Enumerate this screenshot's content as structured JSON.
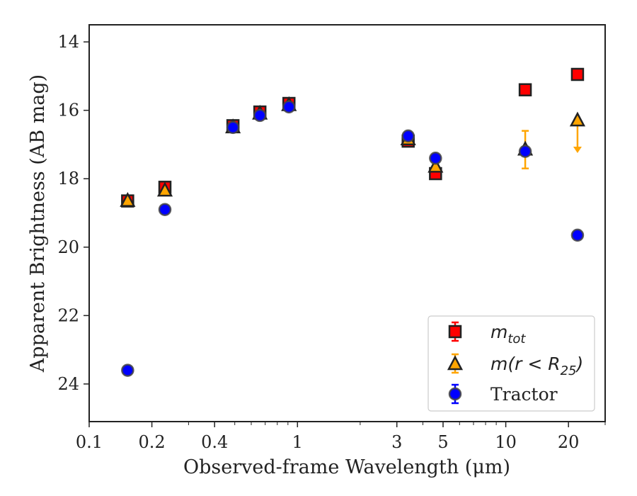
{
  "chart_data": {
    "type": "scatter",
    "title": "",
    "xlabel": "Observed-frame Wavelength (μm)",
    "ylabel": "Apparent Brightness (AB mag)",
    "xscale": "log",
    "xlim": [
      0.1,
      30
    ],
    "ylim": [
      25.1,
      13.5
    ],
    "y_inverted": true,
    "x_ticks": [
      {
        "value": 0.1,
        "label": "0.1"
      },
      {
        "value": 0.2,
        "label": "0.2"
      },
      {
        "value": 0.4,
        "label": "0.4"
      },
      {
        "value": 1,
        "label": "1"
      },
      {
        "value": 3,
        "label": "3"
      },
      {
        "value": 5,
        "label": "5"
      },
      {
        "value": 10,
        "label": "10"
      },
      {
        "value": 20,
        "label": "20"
      }
    ],
    "y_ticks": [
      {
        "value": 14,
        "label": "14"
      },
      {
        "value": 16,
        "label": "16"
      },
      {
        "value": 18,
        "label": "18"
      },
      {
        "value": 20,
        "label": "20"
      },
      {
        "value": 22,
        "label": "22"
      },
      {
        "value": 24,
        "label": "24"
      }
    ],
    "legend_position": "lower-right",
    "series": [
      {
        "key": "mtot",
        "name": "m_tot",
        "marker": "square",
        "color": "#ff0000",
        "errcolor": "#ff0000",
        "points": [
          {
            "x": 0.153,
            "y": 18.65,
            "err": 0.1
          },
          {
            "x": 0.231,
            "y": 18.25,
            "err": 0.1
          },
          {
            "x": 0.49,
            "y": 16.45,
            "err": 0.1
          },
          {
            "x": 0.66,
            "y": 16.05,
            "err": 0.1
          },
          {
            "x": 0.91,
            "y": 15.8,
            "err": 0.1
          },
          {
            "x": 3.4,
            "y": 16.9,
            "err": 0.05
          },
          {
            "x": 4.6,
            "y": 17.85,
            "err": 0.05
          },
          {
            "x": 12.4,
            "y": 15.4,
            "err": 0.05
          },
          {
            "x": 22.1,
            "y": 14.95,
            "err": 0.05
          }
        ]
      },
      {
        "key": "mr25",
        "name": "m(r < R25)",
        "marker": "triangle",
        "color": "#ffa500",
        "errcolor": "#ffa500",
        "points": [
          {
            "x": 0.153,
            "y": 18.65,
            "err": 0.05
          },
          {
            "x": 0.231,
            "y": 18.35,
            "err": 0.05
          },
          {
            "x": 0.49,
            "y": 16.5,
            "err": 0.05
          },
          {
            "x": 0.66,
            "y": 16.1,
            "err": 0.05
          },
          {
            "x": 0.91,
            "y": 15.85,
            "err": 0.05
          },
          {
            "x": 3.4,
            "y": 16.85,
            "err": 0.05
          },
          {
            "x": 4.6,
            "y": 17.65,
            "err": 0.05
          },
          {
            "x": 12.4,
            "y": 17.15,
            "err": 0.55
          },
          {
            "x": 22.1,
            "y": 16.3,
            "upper_limit": true,
            "arrow_to": 17.25
          }
        ]
      },
      {
        "key": "tractor",
        "name": "Tractor",
        "marker": "circle",
        "color": "#0000ff",
        "errcolor": "#0000ff",
        "points": [
          {
            "x": 0.153,
            "y": 23.6,
            "err": 0.05
          },
          {
            "x": 0.231,
            "y": 18.9,
            "err": 0.05
          },
          {
            "x": 0.49,
            "y": 16.5,
            "err": 0.05
          },
          {
            "x": 0.66,
            "y": 16.15,
            "err": 0.05
          },
          {
            "x": 0.91,
            "y": 15.9,
            "err": 0.05
          },
          {
            "x": 3.4,
            "y": 16.75,
            "err": 0.05
          },
          {
            "x": 4.6,
            "y": 17.4,
            "err": 0.05
          },
          {
            "x": 12.4,
            "y": 17.2,
            "err": 0.05
          },
          {
            "x": 22.1,
            "y": 19.65,
            "err": 0.05
          }
        ]
      }
    ],
    "legend": [
      {
        "key": "mtot",
        "base": "m",
        "sub": "tot",
        "rest": ""
      },
      {
        "key": "mr25",
        "base": "m(r < R",
        "sub": "25",
        "rest": ")"
      },
      {
        "key": "tractor",
        "base": "Tractor",
        "sub": "",
        "rest": ""
      }
    ]
  }
}
